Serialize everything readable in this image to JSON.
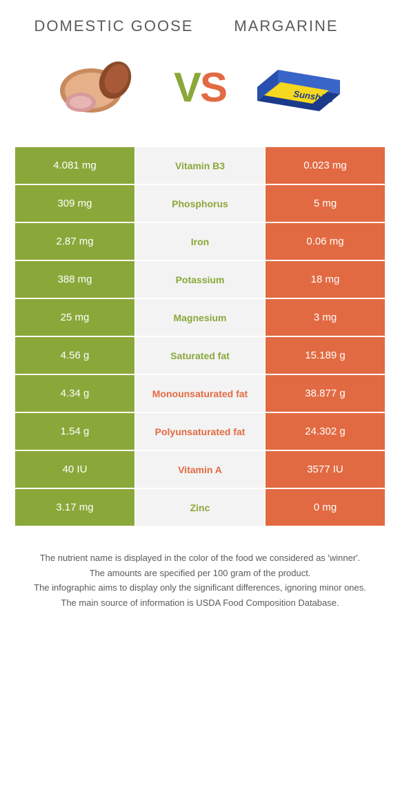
{
  "colors": {
    "left": "#8aa83a",
    "right": "#e26a42",
    "mid_bg": "#f3f3f3",
    "text_grey": "#5a5a5a"
  },
  "header": {
    "left_title": "Domestic goose",
    "right_title": "Margarine",
    "vs_v": "V",
    "vs_s": "S"
  },
  "rows": [
    {
      "left": "4.081 mg",
      "name": "Vitamin B3",
      "right": "0.023 mg",
      "winner": "left"
    },
    {
      "left": "309 mg",
      "name": "Phosphorus",
      "right": "5 mg",
      "winner": "left"
    },
    {
      "left": "2.87 mg",
      "name": "Iron",
      "right": "0.06 mg",
      "winner": "left"
    },
    {
      "left": "388 mg",
      "name": "Potassium",
      "right": "18 mg",
      "winner": "left"
    },
    {
      "left": "25 mg",
      "name": "Magnesium",
      "right": "3 mg",
      "winner": "left"
    },
    {
      "left": "4.56 g",
      "name": "Saturated fat",
      "right": "15.189 g",
      "winner": "left"
    },
    {
      "left": "4.34 g",
      "name": "Monounsaturated fat",
      "right": "38.877 g",
      "winner": "right"
    },
    {
      "left": "1.54 g",
      "name": "Polyunsaturated fat",
      "right": "24.302 g",
      "winner": "right"
    },
    {
      "left": "40 IU",
      "name": "Vitamin A",
      "right": "3577 IU",
      "winner": "right"
    },
    {
      "left": "3.17 mg",
      "name": "Zinc",
      "right": "0 mg",
      "winner": "left"
    }
  ],
  "footer": {
    "l1": "The nutrient name is displayed in the color of the food we considered as 'winner'.",
    "l2": "The amounts are specified per 100 gram of the product.",
    "l3": "The infographic aims to display only the significant differences, ignoring minor ones.",
    "l4": "The main source of information is USDA Food Composition Database."
  }
}
